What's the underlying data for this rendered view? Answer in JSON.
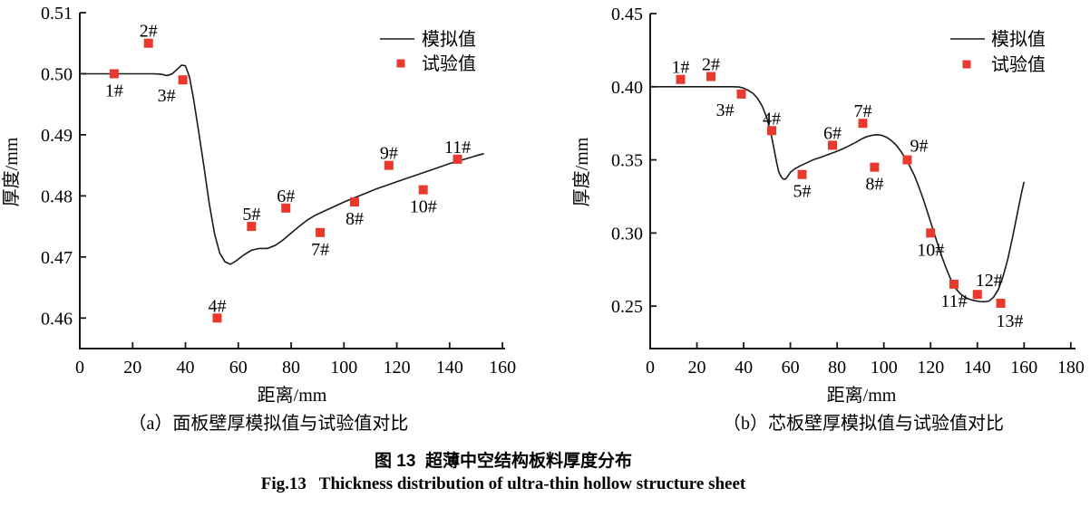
{
  "figure": {
    "caption_cn": "图 13  超薄中空结构板料厚度分布",
    "caption_en": "Fig.13   Thickness distribution of ultra-thin hollow structure sheet"
  },
  "legend": {
    "line_label": "模拟值",
    "marker_label": "试验值",
    "position": "top-right"
  },
  "colors": {
    "marker": "#e8392c",
    "line": "#1a1a1a",
    "text": "#000000",
    "background": "#ffffff"
  },
  "chart_data": [
    {
      "type": "line+scatter",
      "panel": "a",
      "subcaption": "（a）面板壁厚模拟值与试验值对比",
      "xlabel": "距离/mm",
      "ylabel": "厚度/mm",
      "xlim": [
        0,
        161
      ],
      "ylim": [
        0.455,
        0.51
      ],
      "xticks": [
        0,
        20,
        40,
        60,
        80,
        100,
        120,
        140,
        160
      ],
      "yticks": [
        "0.46",
        "0.47",
        "0.48",
        "0.49",
        "0.50",
        "0.51"
      ],
      "grid": false,
      "series": [
        {
          "name": "模拟值",
          "kind": "line",
          "points": [
            [
              0,
              0.5
            ],
            [
              28,
              0.5
            ],
            [
              31,
              0.4999
            ],
            [
              33,
              0.4997
            ],
            [
              35,
              0.5
            ],
            [
              37,
              0.5008
            ],
            [
              38.5,
              0.5014
            ],
            [
              40,
              0.5013
            ],
            [
              41.5,
              0.4995
            ],
            [
              43,
              0.496
            ],
            [
              45,
              0.4905
            ],
            [
              47,
              0.4848
            ],
            [
              49,
              0.4788
            ],
            [
              51,
              0.4738
            ],
            [
              53,
              0.4706
            ],
            [
              55,
              0.4692
            ],
            [
              57,
              0.4688
            ],
            [
              59,
              0.4693
            ],
            [
              62,
              0.4703
            ],
            [
              65,
              0.4711
            ],
            [
              68,
              0.4714
            ],
            [
              71,
              0.4714
            ],
            [
              74,
              0.4719
            ],
            [
              77,
              0.4728
            ],
            [
              80,
              0.4739
            ],
            [
              83,
              0.475
            ],
            [
              86,
              0.476
            ],
            [
              89,
              0.4768
            ],
            [
              92,
              0.4774
            ],
            [
              96,
              0.4782
            ],
            [
              100,
              0.479
            ],
            [
              104,
              0.4797
            ],
            [
              108,
              0.4804
            ],
            [
              112,
              0.4811
            ],
            [
              116,
              0.4817
            ],
            [
              120,
              0.4823
            ],
            [
              124,
              0.4829
            ],
            [
              128,
              0.4835
            ],
            [
              132,
              0.4841
            ],
            [
              136,
              0.4847
            ],
            [
              140,
              0.4853
            ],
            [
              144,
              0.4858
            ],
            [
              148,
              0.4863
            ],
            [
              151,
              0.4867
            ],
            [
              153,
              0.4869
            ]
          ]
        },
        {
          "name": "试验值",
          "kind": "scatter",
          "points": [
            {
              "id": "1#",
              "x": 13,
              "y": 0.5,
              "label_pos": "below"
            },
            {
              "id": "2#",
              "x": 26,
              "y": 0.505,
              "label_pos": "above"
            },
            {
              "id": "3#",
              "x": 39,
              "y": 0.499,
              "label_pos": "below-left"
            },
            {
              "id": "4#",
              "x": 52,
              "y": 0.46,
              "label_pos": "above"
            },
            {
              "id": "5#",
              "x": 65,
              "y": 0.475,
              "label_pos": "above"
            },
            {
              "id": "6#",
              "x": 78,
              "y": 0.478,
              "label_pos": "above"
            },
            {
              "id": "7#",
              "x": 91,
              "y": 0.474,
              "label_pos": "below"
            },
            {
              "id": "8#",
              "x": 104,
              "y": 0.479,
              "label_pos": "below"
            },
            {
              "id": "9#",
              "x": 117,
              "y": 0.485,
              "label_pos": "above"
            },
            {
              "id": "10#",
              "x": 130,
              "y": 0.481,
              "label_pos": "below"
            },
            {
              "id": "11#",
              "x": 143,
              "y": 0.486,
              "label_pos": "above"
            }
          ]
        }
      ]
    },
    {
      "type": "line+scatter",
      "panel": "b",
      "subcaption": "（b）芯板壁厚模拟值与试验值对比",
      "xlabel": "距离/mm",
      "ylabel": "厚度/mm",
      "xlim": [
        0,
        182
      ],
      "ylim": [
        0.221,
        0.45
      ],
      "xticks": [
        0,
        20,
        40,
        60,
        80,
        100,
        120,
        140,
        160,
        180
      ],
      "yticks": [
        "0.25",
        "0.30",
        "0.35",
        "0.40",
        "0.45"
      ],
      "grid": false,
      "series": [
        {
          "name": "模拟值",
          "kind": "line",
          "points": [
            [
              0,
              0.4
            ],
            [
              35,
              0.4
            ],
            [
              38,
              0.3998
            ],
            [
              40,
              0.399
            ],
            [
              42,
              0.3975
            ],
            [
              44,
              0.3955
            ],
            [
              46,
              0.392
            ],
            [
              48,
              0.3865
            ],
            [
              50,
              0.3785
            ],
            [
              52,
              0.3655
            ],
            [
              54,
              0.349
            ],
            [
              55,
              0.342
            ],
            [
              56,
              0.3385
            ],
            [
              57,
              0.3368
            ],
            [
              58,
              0.337
            ],
            [
              59,
              0.339
            ],
            [
              60,
              0.3415
            ],
            [
              62,
              0.344
            ],
            [
              64,
              0.3458
            ],
            [
              67,
              0.348
            ],
            [
              70,
              0.3502
            ],
            [
              73,
              0.3517
            ],
            [
              76,
              0.3535
            ],
            [
              79,
              0.3553
            ],
            [
              82,
              0.3572
            ],
            [
              85,
              0.3595
            ],
            [
              88,
              0.362
            ],
            [
              91,
              0.3648
            ],
            [
              93,
              0.366
            ],
            [
              95,
              0.3668
            ],
            [
              97,
              0.3672
            ],
            [
              99,
              0.3668
            ],
            [
              101,
              0.3655
            ],
            [
              103,
              0.3635
            ],
            [
              105,
              0.3605
            ],
            [
              107,
              0.3565
            ],
            [
              109,
              0.3515
            ],
            [
              111,
              0.346
            ],
            [
              113,
              0.3395
            ],
            [
              115,
              0.3315
            ],
            [
              117,
              0.3225
            ],
            [
              119,
              0.3125
            ],
            [
              121,
              0.3025
            ],
            [
              123,
              0.2925
            ],
            [
              125,
              0.283
            ],
            [
              127,
              0.2745
            ],
            [
              129,
              0.267
            ],
            [
              131,
              0.2615
            ],
            [
              133,
              0.258
            ],
            [
              135,
              0.2558
            ],
            [
              137,
              0.2545
            ],
            [
              139,
              0.2537
            ],
            [
              141,
              0.2532
            ],
            [
              143,
              0.253
            ],
            [
              145,
              0.2535
            ],
            [
              147,
              0.2562
            ],
            [
              149,
              0.2615
            ],
            [
              151,
              0.2702
            ],
            [
              153,
              0.282
            ],
            [
              155,
              0.2965
            ],
            [
              157,
              0.3125
            ],
            [
              159,
              0.328
            ],
            [
              160,
              0.335
            ]
          ]
        },
        {
          "name": "试验值",
          "kind": "scatter",
          "points": [
            {
              "id": "1#",
              "x": 13,
              "y": 0.405,
              "label_pos": "above"
            },
            {
              "id": "2#",
              "x": 26,
              "y": 0.407,
              "label_pos": "above"
            },
            {
              "id": "3#",
              "x": 39,
              "y": 0.395,
              "label_pos": "below-left"
            },
            {
              "id": "4#",
              "x": 52,
              "y": 0.37,
              "label_pos": "above"
            },
            {
              "id": "5#",
              "x": 65,
              "y": 0.34,
              "label_pos": "below"
            },
            {
              "id": "6#",
              "x": 78,
              "y": 0.36,
              "label_pos": "above"
            },
            {
              "id": "7#",
              "x": 91,
              "y": 0.375,
              "label_pos": "above"
            },
            {
              "id": "8#",
              "x": 96,
              "y": 0.345,
              "label_pos": "below"
            },
            {
              "id": "9#",
              "x": 110,
              "y": 0.35,
              "label_pos": "above-right"
            },
            {
              "id": "10#",
              "x": 120,
              "y": 0.3,
              "label_pos": "below"
            },
            {
              "id": "11#",
              "x": 130,
              "y": 0.265,
              "label_pos": "below"
            },
            {
              "id": "12#",
              "x": 140,
              "y": 0.258,
              "label_pos": "above-right"
            },
            {
              "id": "13#",
              "x": 150,
              "y": 0.252,
              "label_pos": "below-right"
            }
          ]
        }
      ]
    }
  ]
}
